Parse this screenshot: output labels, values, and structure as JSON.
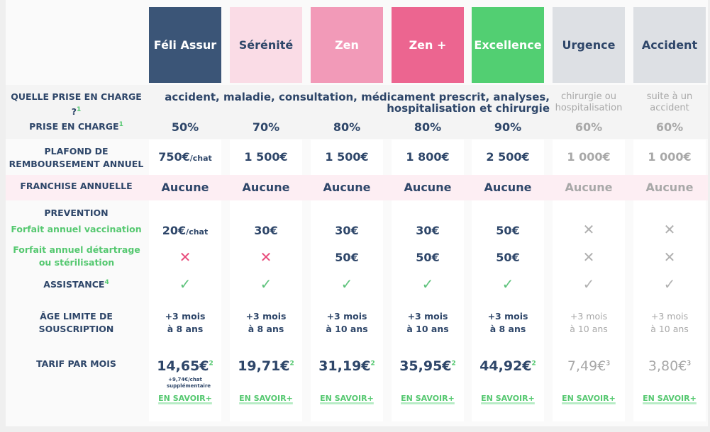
{
  "colors": {
    "primary_text": "#2e4669",
    "accent_green": "#55c870",
    "muted": "#a8a8a8",
    "cross_pink": "#e84a7a",
    "check_green": "#5cc27a"
  },
  "row_labels": {
    "quelle": "QUELLE PRISE EN CHARGE ?",
    "quelle_sup": "1",
    "prise": "PRISE EN CHARGE",
    "prise_sup": "1",
    "plafond": "PLAFOND DE REMBOURSEMENT ANNUEL",
    "franchise": "FRANCHISE ANNUELLE",
    "prevention": "PREVENTION",
    "vaccination": "Forfait annuel vaccination",
    "detartrage": "Forfait annuel détartrage ou stérilisation",
    "assistance": "ASSISTANCE",
    "assistance_sup": "4",
    "age": "ÂGE LIMITE DE SOUSCRIPTION",
    "tarif": "TARIF PAR MOIS"
  },
  "shared_coverage": "accident, maladie, consultation, médicament prescrit, analyses, hospitalisation et chirurgie",
  "plans": [
    {
      "name": "Féli Assur",
      "bg": "#3b5577",
      "fg": "#ffffff",
      "muted": false,
      "coverage": "",
      "prise": "50%",
      "plafond": "750€",
      "plafond_suffix": "/chat",
      "franchise": "Aucune",
      "vaccination": "20€",
      "vaccination_suffix": "/chat",
      "detartrage": "",
      "detartrage_icon": "cross",
      "assistance_icon": "check",
      "age1": "+3 mois",
      "age2": "à 8 ans",
      "tarif": "14,65€",
      "tarif_sup": "2",
      "tarif_note": "+9,74€/chat supplémentaire",
      "link": "EN SAVOIR+"
    },
    {
      "name": "Sérénité",
      "bg": "#fadce6",
      "fg": "#2e4669",
      "muted": false,
      "coverage": "",
      "prise": "70%",
      "plafond": "1 500€",
      "plafond_suffix": "",
      "franchise": "Aucune",
      "vaccination": "30€",
      "vaccination_suffix": "",
      "detartrage": "",
      "detartrage_icon": "cross",
      "assistance_icon": "check",
      "age1": "+3 mois",
      "age2": "à 8 ans",
      "tarif": "19,71€",
      "tarif_sup": "2",
      "tarif_note": "",
      "link": "EN SAVOIR+"
    },
    {
      "name": "Zen",
      "bg": "#f29ab8",
      "fg": "#ffffff",
      "muted": false,
      "coverage": "",
      "prise": "80%",
      "plafond": "1 500€",
      "plafond_suffix": "",
      "franchise": "Aucune",
      "vaccination": "30€",
      "vaccination_suffix": "",
      "detartrage": "50€",
      "detartrage_icon": "",
      "assistance_icon": "check",
      "age1": "+3 mois",
      "age2": "à 10 ans",
      "tarif": "31,19€",
      "tarif_sup": "2",
      "tarif_note": "",
      "link": "EN SAVOIR+"
    },
    {
      "name": "Zen +",
      "bg": "#ec6590",
      "fg": "#ffffff",
      "muted": false,
      "coverage": "",
      "prise": "80%",
      "plafond": "1 800€",
      "plafond_suffix": "",
      "franchise": "Aucune",
      "vaccination": "30€",
      "vaccination_suffix": "",
      "detartrage": "50€",
      "detartrage_icon": "",
      "assistance_icon": "check",
      "age1": "+3 mois",
      "age2": "à 10 ans",
      "tarif": "35,95€",
      "tarif_sup": "2",
      "tarif_note": "",
      "link": "EN SAVOIR+"
    },
    {
      "name": "Excellence",
      "bg": "#52cf72",
      "fg": "#ffffff",
      "muted": false,
      "coverage": "",
      "prise": "90%",
      "plafond": "2 500€",
      "plafond_suffix": "",
      "franchise": "Aucune",
      "vaccination": "50€",
      "vaccination_suffix": "",
      "detartrage": "50€",
      "detartrage_icon": "",
      "assistance_icon": "check",
      "age1": "+3 mois",
      "age2": "à 8 ans",
      "tarif": "44,92€",
      "tarif_sup": "2",
      "tarif_note": "",
      "link": "EN SAVOIR+"
    },
    {
      "name": "Urgence",
      "bg": "#dde0e4",
      "fg": "#2e4669",
      "muted": true,
      "coverage": "chirurgie ou hospitalisation",
      "prise": "60%",
      "plafond": "1 000€",
      "plafond_suffix": "",
      "franchise": "Aucune",
      "vaccination": "",
      "vaccination_suffix": "",
      "vaccination_icon": "cross",
      "detartrage": "",
      "detartrage_icon": "cross",
      "assistance_icon": "check",
      "age1": "+3 mois",
      "age2": "à 10 ans",
      "tarif": "7,49€",
      "tarif_sup": "3",
      "tarif_note": "",
      "link": "EN SAVOIR+"
    },
    {
      "name": "Accident",
      "bg": "#dde0e4",
      "fg": "#2e4669",
      "muted": true,
      "coverage": "suite à un accident",
      "prise": "60%",
      "plafond": "1 000€",
      "plafond_suffix": "",
      "franchise": "Aucune",
      "vaccination": "",
      "vaccination_suffix": "",
      "vaccination_icon": "cross",
      "detartrage": "",
      "detartrage_icon": "cross",
      "assistance_icon": "check",
      "age1": "+3 mois",
      "age2": "à 10 ans",
      "tarif": "3,80€",
      "tarif_sup": "3",
      "tarif_note": "",
      "link": "EN SAVOIR+"
    }
  ]
}
